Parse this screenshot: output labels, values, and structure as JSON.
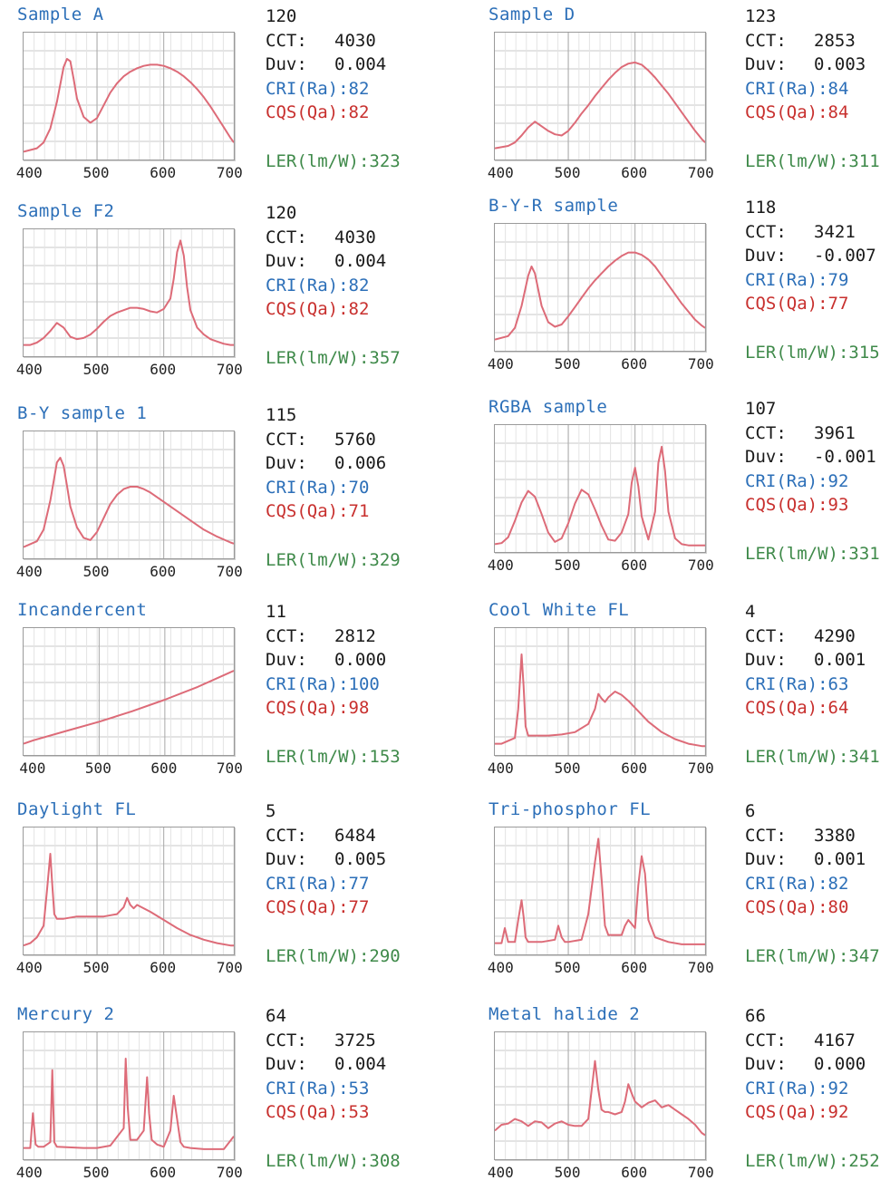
{
  "colors": {
    "spectrum_line": "#dd6b78",
    "title_blue": "#2c6fb8",
    "cri_blue": "#2c6fb8",
    "cqs_red": "#c8302e",
    "ler_green": "#3f8a4a",
    "grid": "#c8c8c8",
    "frame": "#9a9a9a"
  },
  "labels": {
    "cct": "CCT:",
    "duv": "Duv:",
    "cri_prefix": "CRI(Ra):",
    "cqs_prefix": "CQS(Qa):",
    "ler_prefix": "LER(lm/W):"
  },
  "chart_data": [
    {
      "type": "line",
      "title": "Sample A",
      "number": "120",
      "cct": "4030",
      "duv": "0.004",
      "cri": "82",
      "cqs": "82",
      "ler": "323",
      "x_ticks": [
        "400",
        "500",
        "600",
        "700"
      ],
      "xlim": [
        390,
        705
      ],
      "ylim": [
        0,
        1
      ],
      "grid": true,
      "x": [
        390,
        410,
        420,
        430,
        440,
        450,
        455,
        460,
        465,
        470,
        480,
        490,
        500,
        510,
        520,
        530,
        540,
        550,
        560,
        570,
        580,
        590,
        600,
        610,
        620,
        630,
        640,
        650,
        660,
        670,
        680,
        690,
        700,
        705
      ],
      "y": [
        0.02,
        0.05,
        0.1,
        0.22,
        0.45,
        0.75,
        0.82,
        0.8,
        0.65,
        0.48,
        0.32,
        0.27,
        0.31,
        0.42,
        0.53,
        0.61,
        0.67,
        0.71,
        0.74,
        0.76,
        0.77,
        0.77,
        0.76,
        0.74,
        0.71,
        0.67,
        0.62,
        0.56,
        0.49,
        0.41,
        0.32,
        0.23,
        0.14,
        0.1
      ]
    },
    {
      "type": "line",
      "title": "Sample D",
      "number": "123",
      "cct": "2853",
      "duv": "0.003",
      "cri": "84",
      "cqs": "84",
      "ler": "311",
      "x_ticks": [
        "400",
        "500",
        "600",
        "700"
      ],
      "xlim": [
        390,
        705
      ],
      "ylim": [
        0,
        1
      ],
      "grid": true,
      "x": [
        390,
        410,
        420,
        430,
        440,
        450,
        460,
        470,
        480,
        490,
        500,
        510,
        520,
        530,
        540,
        550,
        560,
        570,
        580,
        590,
        600,
        610,
        620,
        630,
        640,
        650,
        660,
        670,
        680,
        690,
        700,
        705
      ],
      "y": [
        0.05,
        0.07,
        0.1,
        0.16,
        0.23,
        0.28,
        0.24,
        0.2,
        0.17,
        0.16,
        0.2,
        0.27,
        0.35,
        0.42,
        0.5,
        0.57,
        0.64,
        0.7,
        0.75,
        0.78,
        0.79,
        0.77,
        0.72,
        0.66,
        0.59,
        0.52,
        0.44,
        0.36,
        0.28,
        0.2,
        0.13,
        0.1
      ]
    },
    {
      "type": "line",
      "title": "Sample F2",
      "number": "120",
      "cct": "4030",
      "duv": "0.004",
      "cri": "82",
      "cqs": "82",
      "ler": "357",
      "x_ticks": [
        "400",
        "500",
        "600",
        "700"
      ],
      "xlim": [
        390,
        705
      ],
      "ylim": [
        0,
        1
      ],
      "grid": true,
      "x": [
        390,
        400,
        410,
        420,
        430,
        440,
        450,
        460,
        470,
        480,
        490,
        500,
        510,
        520,
        530,
        540,
        550,
        560,
        570,
        580,
        590,
        600,
        610,
        615,
        620,
        625,
        630,
        635,
        640,
        650,
        660,
        670,
        680,
        690,
        700,
        705
      ],
      "y": [
        0.05,
        0.05,
        0.07,
        0.11,
        0.17,
        0.24,
        0.2,
        0.12,
        0.1,
        0.11,
        0.14,
        0.19,
        0.25,
        0.3,
        0.33,
        0.35,
        0.37,
        0.37,
        0.36,
        0.34,
        0.33,
        0.36,
        0.45,
        0.62,
        0.85,
        0.95,
        0.82,
        0.55,
        0.35,
        0.2,
        0.14,
        0.1,
        0.08,
        0.06,
        0.05,
        0.05
      ]
    },
    {
      "type": "line",
      "title": "B-Y-R sample",
      "number": "118",
      "cct": "3421",
      "duv": "-0.007",
      "cri": "79",
      "cqs": "77",
      "ler": "315",
      "x_ticks": [
        "400",
        "500",
        "600",
        "700"
      ],
      "xlim": [
        390,
        705
      ],
      "ylim": [
        0,
        1
      ],
      "grid": true,
      "x": [
        390,
        410,
        420,
        430,
        440,
        445,
        450,
        455,
        460,
        470,
        480,
        490,
        500,
        510,
        520,
        530,
        540,
        550,
        560,
        570,
        580,
        590,
        600,
        610,
        620,
        630,
        640,
        650,
        660,
        670,
        680,
        690,
        700,
        705
      ],
      "y": [
        0.05,
        0.08,
        0.15,
        0.34,
        0.6,
        0.68,
        0.62,
        0.48,
        0.34,
        0.2,
        0.16,
        0.18,
        0.25,
        0.33,
        0.41,
        0.49,
        0.56,
        0.62,
        0.68,
        0.73,
        0.77,
        0.8,
        0.8,
        0.78,
        0.74,
        0.68,
        0.6,
        0.52,
        0.44,
        0.36,
        0.29,
        0.22,
        0.17,
        0.15
      ]
    },
    {
      "type": "line",
      "title": "B-Y sample 1",
      "number": "115",
      "cct": "5760",
      "duv": "0.006",
      "cri": "70",
      "cqs": "71",
      "ler": "329",
      "x_ticks": [
        "400",
        "500",
        "600",
        "700"
      ],
      "xlim": [
        390,
        705
      ],
      "ylim": [
        0,
        1
      ],
      "grid": true,
      "x": [
        390,
        410,
        420,
        430,
        440,
        445,
        450,
        455,
        460,
        470,
        480,
        490,
        500,
        510,
        520,
        530,
        540,
        550,
        560,
        570,
        580,
        590,
        600,
        620,
        640,
        660,
        680,
        700,
        705
      ],
      "y": [
        0.05,
        0.1,
        0.2,
        0.45,
        0.78,
        0.82,
        0.75,
        0.58,
        0.4,
        0.22,
        0.13,
        0.11,
        0.18,
        0.3,
        0.42,
        0.5,
        0.55,
        0.57,
        0.57,
        0.55,
        0.52,
        0.48,
        0.44,
        0.36,
        0.28,
        0.2,
        0.14,
        0.09,
        0.08
      ]
    },
    {
      "type": "line",
      "title": "RGBA sample",
      "number": "107",
      "cct": "3961",
      "duv": "-0.001",
      "cri": "92",
      "cqs": "93",
      "ler": "331",
      "x_ticks": [
        "400",
        "500",
        "600",
        "700"
      ],
      "xlim": [
        390,
        705
      ],
      "ylim": [
        0,
        1
      ],
      "grid": true,
      "x": [
        390,
        400,
        410,
        420,
        430,
        440,
        450,
        460,
        470,
        480,
        490,
        500,
        510,
        520,
        530,
        540,
        550,
        560,
        570,
        580,
        590,
        595,
        600,
        605,
        610,
        620,
        630,
        635,
        640,
        645,
        650,
        660,
        670,
        680,
        690,
        700,
        705
      ],
      "y": [
        0.02,
        0.03,
        0.08,
        0.22,
        0.38,
        0.48,
        0.43,
        0.28,
        0.12,
        0.04,
        0.07,
        0.2,
        0.37,
        0.49,
        0.45,
        0.32,
        0.18,
        0.06,
        0.05,
        0.12,
        0.28,
        0.55,
        0.68,
        0.52,
        0.26,
        0.06,
        0.3,
        0.72,
        0.86,
        0.65,
        0.3,
        0.07,
        0.02,
        0.01,
        0.01,
        0.01,
        0.01
      ]
    },
    {
      "type": "line",
      "title": "Incandercent",
      "number": "11",
      "cct": "2812",
      "duv": "0.000",
      "cri": "100",
      "cqs": "98",
      "ler": "153",
      "x_ticks": [
        "400",
        "500",
        "600",
        "700"
      ],
      "xlim": [
        385,
        705
      ],
      "ylim": [
        0,
        1
      ],
      "grid": true,
      "x": [
        385,
        400,
        450,
        500,
        550,
        600,
        650,
        705
      ],
      "y": [
        0.05,
        0.08,
        0.16,
        0.24,
        0.33,
        0.43,
        0.54,
        0.68
      ]
    },
    {
      "type": "line",
      "title": "Cool White FL",
      "number": "4",
      "cct": "4290",
      "duv": "0.001",
      "cri": "63",
      "cqs": "64",
      "ler": "341",
      "x_ticks": [
        "400",
        "500",
        "600",
        "700"
      ],
      "xlim": [
        390,
        705
      ],
      "ylim": [
        0,
        1
      ],
      "grid": true,
      "x": [
        390,
        400,
        420,
        425,
        430,
        433,
        436,
        440,
        450,
        470,
        490,
        510,
        530,
        540,
        545,
        550,
        555,
        560,
        570,
        580,
        590,
        600,
        610,
        620,
        640,
        660,
        680,
        700,
        705
      ],
      "y": [
        0.05,
        0.05,
        0.1,
        0.35,
        0.82,
        0.55,
        0.2,
        0.12,
        0.12,
        0.12,
        0.13,
        0.15,
        0.22,
        0.35,
        0.48,
        0.44,
        0.41,
        0.45,
        0.5,
        0.47,
        0.42,
        0.36,
        0.3,
        0.24,
        0.15,
        0.09,
        0.05,
        0.03,
        0.03
      ]
    },
    {
      "type": "line",
      "title": "Daylight FL",
      "number": "5",
      "cct": "6484",
      "duv": "0.005",
      "cri": "77",
      "cqs": "77",
      "ler": "290",
      "x_ticks": [
        "400",
        "500",
        "600",
        "700"
      ],
      "xlim": [
        390,
        705
      ],
      "ylim": [
        0,
        1
      ],
      "grid": true,
      "x": [
        390,
        400,
        410,
        420,
        425,
        430,
        433,
        436,
        440,
        450,
        470,
        490,
        510,
        530,
        540,
        545,
        550,
        555,
        560,
        580,
        600,
        620,
        640,
        660,
        680,
        700,
        705
      ],
      "y": [
        0.03,
        0.05,
        0.1,
        0.2,
        0.5,
        0.82,
        0.55,
        0.3,
        0.26,
        0.26,
        0.28,
        0.28,
        0.28,
        0.3,
        0.36,
        0.44,
        0.38,
        0.35,
        0.38,
        0.32,
        0.25,
        0.18,
        0.12,
        0.08,
        0.05,
        0.03,
        0.03
      ]
    },
    {
      "type": "line",
      "title": "Tri-phosphor FL",
      "number": "6",
      "cct": "3380",
      "duv": "0.001",
      "cri": "82",
      "cqs": "80",
      "ler": "347",
      "x_ticks": [
        "400",
        "500",
        "600",
        "700"
      ],
      "xlim": [
        390,
        705
      ],
      "ylim": [
        0,
        1
      ],
      "grid": true,
      "x": [
        390,
        400,
        405,
        410,
        420,
        425,
        430,
        433,
        436,
        440,
        460,
        480,
        485,
        490,
        495,
        500,
        520,
        530,
        540,
        545,
        550,
        555,
        560,
        580,
        585,
        590,
        600,
        605,
        610,
        615,
        620,
        630,
        650,
        670,
        690,
        705
      ],
      "y": [
        0.05,
        0.05,
        0.18,
        0.06,
        0.06,
        0.25,
        0.42,
        0.28,
        0.1,
        0.06,
        0.06,
        0.08,
        0.2,
        0.1,
        0.06,
        0.06,
        0.08,
        0.3,
        0.75,
        0.95,
        0.6,
        0.2,
        0.12,
        0.12,
        0.2,
        0.25,
        0.18,
        0.55,
        0.8,
        0.65,
        0.25,
        0.1,
        0.06,
        0.04,
        0.04,
        0.04
      ]
    },
    {
      "type": "line",
      "title": "Mercury 2",
      "number": "64",
      "cct": "3725",
      "duv": "0.004",
      "cri": "53",
      "cqs": "53",
      "ler": "308",
      "x_ticks": [
        "400",
        "500",
        "600",
        "700"
      ],
      "xlim": [
        390,
        705
      ],
      "ylim": [
        0,
        1
      ],
      "grid": true,
      "x": [
        390,
        400,
        404,
        408,
        412,
        420,
        430,
        433,
        436,
        440,
        480,
        500,
        520,
        540,
        543,
        546,
        550,
        560,
        570,
        575,
        578,
        582,
        590,
        600,
        610,
        615,
        620,
        625,
        630,
        640,
        660,
        690,
        705
      ],
      "y": [
        0.05,
        0.05,
        0.35,
        0.08,
        0.06,
        0.06,
        0.1,
        0.72,
        0.1,
        0.06,
        0.05,
        0.05,
        0.07,
        0.22,
        0.82,
        0.4,
        0.12,
        0.12,
        0.2,
        0.66,
        0.35,
        0.12,
        0.08,
        0.06,
        0.2,
        0.5,
        0.3,
        0.1,
        0.06,
        0.05,
        0.04,
        0.04,
        0.15
      ]
    },
    {
      "type": "line",
      "title": "Metal halide 2",
      "number": "66",
      "cct": "4167",
      "duv": "0.000",
      "cri": "92",
      "cqs": "92",
      "ler": "252",
      "x_ticks": [
        "400",
        "500",
        "600",
        "700"
      ],
      "xlim": [
        390,
        705
      ],
      "ylim": [
        0,
        1
      ],
      "grid": true,
      "x": [
        390,
        400,
        410,
        420,
        430,
        440,
        450,
        460,
        470,
        480,
        490,
        500,
        510,
        520,
        530,
        535,
        540,
        545,
        550,
        555,
        560,
        570,
        580,
        585,
        590,
        595,
        600,
        610,
        620,
        630,
        640,
        650,
        660,
        670,
        680,
        690,
        700,
        705
      ],
      "y": [
        0.2,
        0.25,
        0.26,
        0.3,
        0.28,
        0.24,
        0.28,
        0.27,
        0.22,
        0.26,
        0.28,
        0.25,
        0.24,
        0.24,
        0.3,
        0.55,
        0.8,
        0.55,
        0.38,
        0.36,
        0.36,
        0.34,
        0.36,
        0.45,
        0.6,
        0.52,
        0.45,
        0.4,
        0.44,
        0.46,
        0.4,
        0.42,
        0.38,
        0.34,
        0.3,
        0.25,
        0.18,
        0.16
      ]
    }
  ]
}
